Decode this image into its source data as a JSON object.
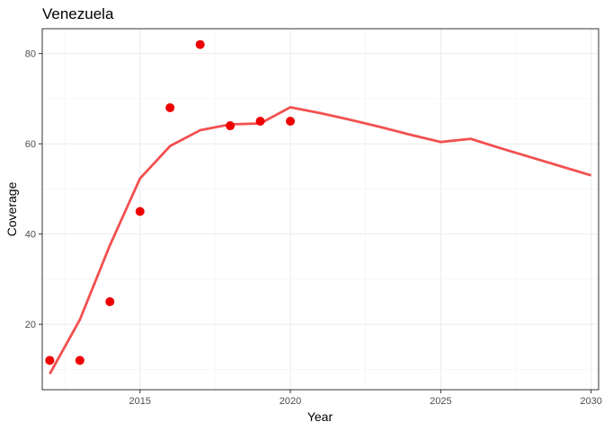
{
  "chart_data": {
    "type": "line",
    "title": "Venezuela",
    "xlabel": "Year",
    "ylabel": "Coverage",
    "xlim": [
      2011.75,
      2030.25
    ],
    "ylim": [
      5.5,
      85.5
    ],
    "x_ticks": [
      2015,
      2020,
      2025,
      2030
    ],
    "y_ticks": [
      20,
      40,
      60,
      80
    ],
    "grid": true,
    "series": [
      {
        "kind": "line",
        "color": "#F25050",
        "x": [
          2012,
          2013,
          2014,
          2015,
          2016,
          2017,
          2018,
          2019,
          2020,
          2021,
          2022,
          2023,
          2024,
          2025,
          2026,
          2027,
          2028,
          2029,
          2030
        ],
        "y": [
          9,
          21,
          37.5,
          52.3,
          59.5,
          63,
          64.3,
          64.5,
          68.1,
          66.8,
          65.3,
          63.7,
          62,
          60.4,
          61.1,
          59,
          57,
          55,
          53
        ]
      },
      {
        "kind": "scatter",
        "color": "#EE0000",
        "x": [
          2012,
          2013,
          2014,
          2015,
          2016,
          2017,
          2018,
          2019,
          2020
        ],
        "y": [
          12,
          12,
          25,
          45,
          68,
          82,
          64,
          65,
          65
        ]
      }
    ]
  }
}
